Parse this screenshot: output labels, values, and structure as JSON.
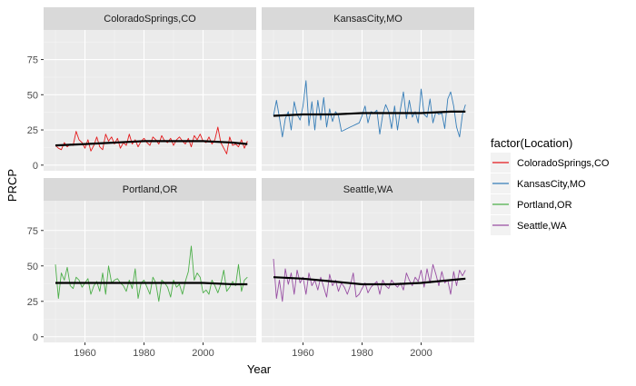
{
  "chart_data": {
    "type": "line",
    "xlabel": "Year",
    "ylabel": "PRCP",
    "xlim": [
      1946,
      2018
    ],
    "ylim": [
      -4,
      96
    ],
    "x_ticks": [
      "1960",
      "1980",
      "2000"
    ],
    "y_ticks": [
      "0",
      "25",
      "50",
      "75"
    ],
    "grid": true,
    "legend": {
      "title": "factor(Location)",
      "position": "right",
      "entries": [
        "ColoradoSprings,CO",
        "KansasCity,MO",
        "Portland,OR",
        "Seattle,WA"
      ]
    },
    "colors": {
      "ColoradoSprings,CO": "#e41a1c",
      "KansasCity,MO": "#377eb8",
      "Portland,OR": "#4daf4a",
      "Seattle,WA": "#984ea3",
      "trend": "#000000",
      "panel": "#ebebeb",
      "strip": "#d9d9d9"
    },
    "panels": [
      {
        "label": "ColoradoSprings,CO",
        "series": "ColoradoSprings,CO",
        "x": [
          1950,
          1951,
          1952,
          1953,
          1954,
          1955,
          1956,
          1957,
          1958,
          1959,
          1960,
          1961,
          1962,
          1963,
          1964,
          1965,
          1966,
          1967,
          1968,
          1969,
          1970,
          1971,
          1972,
          1973,
          1974,
          1975,
          1976,
          1977,
          1978,
          1979,
          1980,
          1981,
          1982,
          1983,
          1984,
          1985,
          1986,
          1987,
          1988,
          1989,
          1990,
          1991,
          1992,
          1993,
          1994,
          1995,
          1996,
          1997,
          1998,
          1999,
          2000,
          2001,
          2002,
          2003,
          2004,
          2005,
          2006,
          2007,
          2008,
          2009,
          2010,
          2011,
          2012,
          2013,
          2014,
          2015
        ],
        "y": [
          14,
          12,
          11,
          16,
          13,
          15,
          14,
          24,
          18,
          16,
          12,
          18,
          10,
          14,
          20,
          13,
          11,
          22,
          17,
          20,
          15,
          19,
          12,
          16,
          14,
          22,
          15,
          18,
          13,
          17,
          19,
          16,
          14,
          20,
          18,
          15,
          21,
          17,
          16,
          19,
          14,
          18,
          20,
          17,
          15,
          19,
          13,
          21,
          18,
          22,
          17,
          16,
          20,
          15,
          18,
          27,
          16,
          12,
          8,
          20,
          14,
          15,
          13,
          18,
          12,
          17
        ],
        "trend": [
          [
            1950,
            14
          ],
          [
            1960,
            15
          ],
          [
            1970,
            16
          ],
          [
            1980,
            17
          ],
          [
            1990,
            17
          ],
          [
            2000,
            17
          ],
          [
            2010,
            16
          ],
          [
            2015,
            15
          ]
        ]
      },
      {
        "label": "KansasCity,MO",
        "series": "KansasCity,MO",
        "x": [
          1950,
          1951,
          1952,
          1953,
          1954,
          1955,
          1956,
          1957,
          1958,
          1959,
          1960,
          1961,
          1962,
          1963,
          1964,
          1965,
          1966,
          1967,
          1968,
          1969,
          1970,
          1971,
          1972,
          1973,
          1974,
          1975,
          1976,
          1977,
          1978,
          1979,
          1980,
          1981,
          1982,
          1983,
          1984,
          1985,
          1986,
          1987,
          1988,
          1989,
          1990,
          1991,
          1992,
          1993,
          1994,
          1995,
          1996,
          1997,
          1998,
          1999,
          2000,
          2001,
          2002,
          2003,
          2004,
          2005,
          2006,
          2007,
          2008,
          2009,
          2010,
          2011,
          2012,
          2013,
          2014,
          2015
        ],
        "y": [
          35,
          46,
          34,
          20,
          33,
          38,
          25,
          45,
          36,
          32,
          42,
          60,
          28,
          45,
          25,
          46,
          32,
          48,
          27,
          40,
          31,
          38,
          35,
          24,
          25,
          26,
          27,
          28,
          29,
          30,
          35,
          42,
          30,
          38,
          37,
          39,
          22,
          36,
          43,
          38,
          26,
          42,
          25,
          40,
          52,
          33,
          46,
          34,
          38,
          30,
          54,
          36,
          34,
          47,
          30,
          38,
          36,
          37,
          26,
          47,
          52,
          42,
          27,
          20,
          36,
          43
        ],
        "trend": [
          [
            1950,
            35
          ],
          [
            1960,
            36
          ],
          [
            1970,
            36
          ],
          [
            1980,
            37
          ],
          [
            1990,
            37
          ],
          [
            2000,
            37
          ],
          [
            2010,
            38
          ],
          [
            2015,
            38
          ]
        ]
      },
      {
        "label": "Portland,OR",
        "series": "Portland,OR",
        "x": [
          1950,
          1951,
          1952,
          1953,
          1954,
          1955,
          1956,
          1957,
          1958,
          1959,
          1960,
          1961,
          1962,
          1963,
          1964,
          1965,
          1966,
          1967,
          1968,
          1969,
          1970,
          1971,
          1972,
          1973,
          1974,
          1975,
          1976,
          1977,
          1978,
          1979,
          1980,
          1981,
          1982,
          1983,
          1984,
          1985,
          1986,
          1987,
          1988,
          1989,
          1990,
          1991,
          1992,
          1993,
          1994,
          1995,
          1996,
          1997,
          1998,
          1999,
          2000,
          2001,
          2002,
          2003,
          2004,
          2005,
          2006,
          2007,
          2008,
          2009,
          2010,
          2011,
          2012,
          2013,
          2014,
          2015
        ],
        "y": [
          51,
          27,
          45,
          40,
          49,
          36,
          34,
          42,
          40,
          35,
          38,
          41,
          30,
          36,
          39,
          32,
          45,
          30,
          50,
          38,
          40,
          41,
          38,
          36,
          32,
          40,
          34,
          48,
          27,
          38,
          40,
          35,
          30,
          42,
          38,
          25,
          40,
          38,
          35,
          28,
          40,
          35,
          37,
          30,
          39,
          46,
          64,
          40,
          45,
          42,
          31,
          33,
          30,
          40,
          36,
          31,
          37,
          47,
          32,
          35,
          39,
          36,
          51,
          32,
          40,
          42
        ],
        "trend": [
          [
            1950,
            38
          ],
          [
            1960,
            38
          ],
          [
            1970,
            38
          ],
          [
            1980,
            38
          ],
          [
            1990,
            38
          ],
          [
            2000,
            38
          ],
          [
            2010,
            37
          ],
          [
            2015,
            37
          ]
        ]
      },
      {
        "label": "Seattle,WA",
        "series": "Seattle,WA",
        "x": [
          1950,
          1951,
          1952,
          1953,
          1954,
          1955,
          1956,
          1957,
          1958,
          1959,
          1960,
          1961,
          1962,
          1963,
          1964,
          1965,
          1966,
          1967,
          1968,
          1969,
          1970,
          1971,
          1972,
          1973,
          1974,
          1975,
          1976,
          1977,
          1978,
          1979,
          1980,
          1981,
          1982,
          1983,
          1984,
          1985,
          1986,
          1987,
          1988,
          1989,
          1990,
          1991,
          1992,
          1993,
          1994,
          1995,
          1996,
          1997,
          1998,
          1999,
          2000,
          2001,
          2002,
          2003,
          2004,
          2005,
          2006,
          2007,
          2008,
          2009,
          2010,
          2011,
          2012,
          2013,
          2014,
          2015
        ],
        "y": [
          55,
          27,
          40,
          25,
          48,
          37,
          45,
          30,
          47,
          38,
          42,
          30,
          45,
          36,
          40,
          33,
          42,
          35,
          28,
          44,
          36,
          40,
          32,
          38,
          35,
          30,
          36,
          45,
          28,
          30,
          34,
          38,
          31,
          35,
          37,
          39,
          30,
          40,
          36,
          34,
          40,
          37,
          35,
          38,
          33,
          45,
          40,
          36,
          42,
          39,
          47,
          35,
          48,
          38,
          51,
          44,
          36,
          46,
          38,
          40,
          30,
          46,
          36,
          47,
          43,
          47
        ],
        "trend": [
          [
            1950,
            42
          ],
          [
            1960,
            41
          ],
          [
            1970,
            39
          ],
          [
            1980,
            37
          ],
          [
            1990,
            37
          ],
          [
            2000,
            38
          ],
          [
            2010,
            40
          ],
          [
            2015,
            41
          ]
        ]
      }
    ]
  }
}
